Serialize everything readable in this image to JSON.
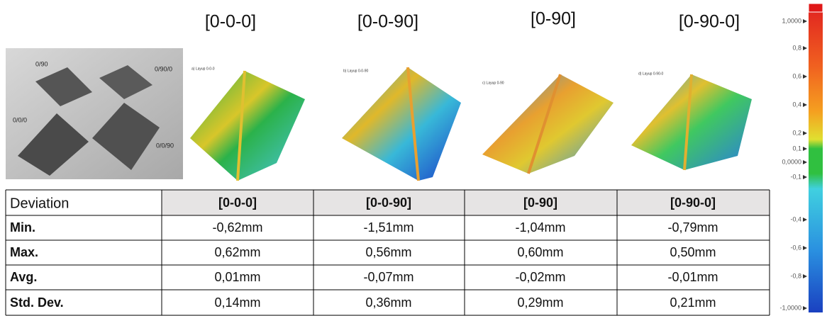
{
  "header": {
    "titles": [
      "[0-0-0]",
      "[0-0-90]",
      "[0-90]",
      "[0-90-0]"
    ]
  },
  "photo": {
    "labels": [
      "0/90",
      "0/90/0",
      "0/0/0",
      "0/0/90"
    ]
  },
  "maps": {
    "captions": [
      "a) Layup 0-0-0",
      "b) Layup 0-0-90",
      "c) Layup 0-90",
      "d) Layup 0-90-0"
    ]
  },
  "table": {
    "header": [
      "Deviation",
      "[0-0-0]",
      "[0-0-90]",
      "[0-90]",
      "[0-90-0]"
    ],
    "rows": [
      [
        "Min.",
        "-0,62mm",
        "-1,51mm",
        "-1,04mm",
        "-0,79mm"
      ],
      [
        "Max.",
        "0,62mm",
        "0,56mm",
        "0,60mm",
        "0,50mm"
      ],
      [
        "Avg.",
        "0,01mm",
        "-0,07mm",
        "-0,02mm",
        "-0,01mm"
      ],
      [
        "Std. Dev.",
        "0,14mm",
        "0,36mm",
        "0,29mm",
        "0,21mm"
      ]
    ]
  },
  "scale": {
    "labels": [
      "1,0000",
      "0,8",
      "0,6",
      "0,4",
      "0,2",
      "0,1",
      "0,0000",
      "-0,1",
      "-0,4",
      "-0,6",
      "-0,8",
      "-1,0000"
    ]
  }
}
